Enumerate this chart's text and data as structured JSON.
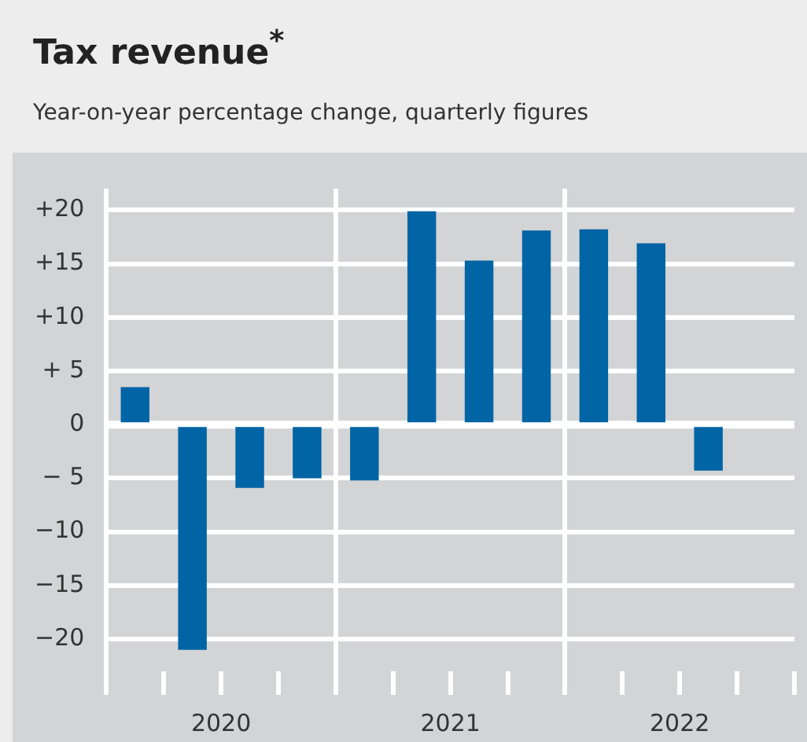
{
  "chart_data": {
    "type": "bar",
    "title": "Tax revenue$^{*}$",
    "subtitle": "Year-on-year percentage change, quarterly figures",
    "categories": [
      null,
      null,
      null,
      null,
      null,
      null,
      null,
      null,
      null,
      null,
      null,
      null
    ],
    "values": [
      3.5,
      -21.0,
      -5.9,
      -5.0,
      -5.2,
      19.9,
      15.3,
      18.1,
      18.2,
      16.9,
      -4.3,
      null
    ],
    "color": "#0064a5",
    "annotations": [
      "2020",
      "2021",
      "2022"
    ],
    "ylim": [
      -23,
      22
    ],
    "yticks": [
      {
        "value": 20,
        "label": "+20"
      },
      {
        "value": 15,
        "label": "+15"
      },
      {
        "value": 10,
        "label": "+10"
      },
      {
        "value": 5,
        "label": "+ 5"
      },
      0,
      {
        "value": -5,
        "label": "− 5"
      },
      {
        "value": -10,
        "label": "−10"
      },
      {
        "value": -15,
        "label": "−15"
      },
      {
        "value": -20,
        "label": "−20"
      }
    ],
    "grid": "y",
    "legend": false
  }
}
